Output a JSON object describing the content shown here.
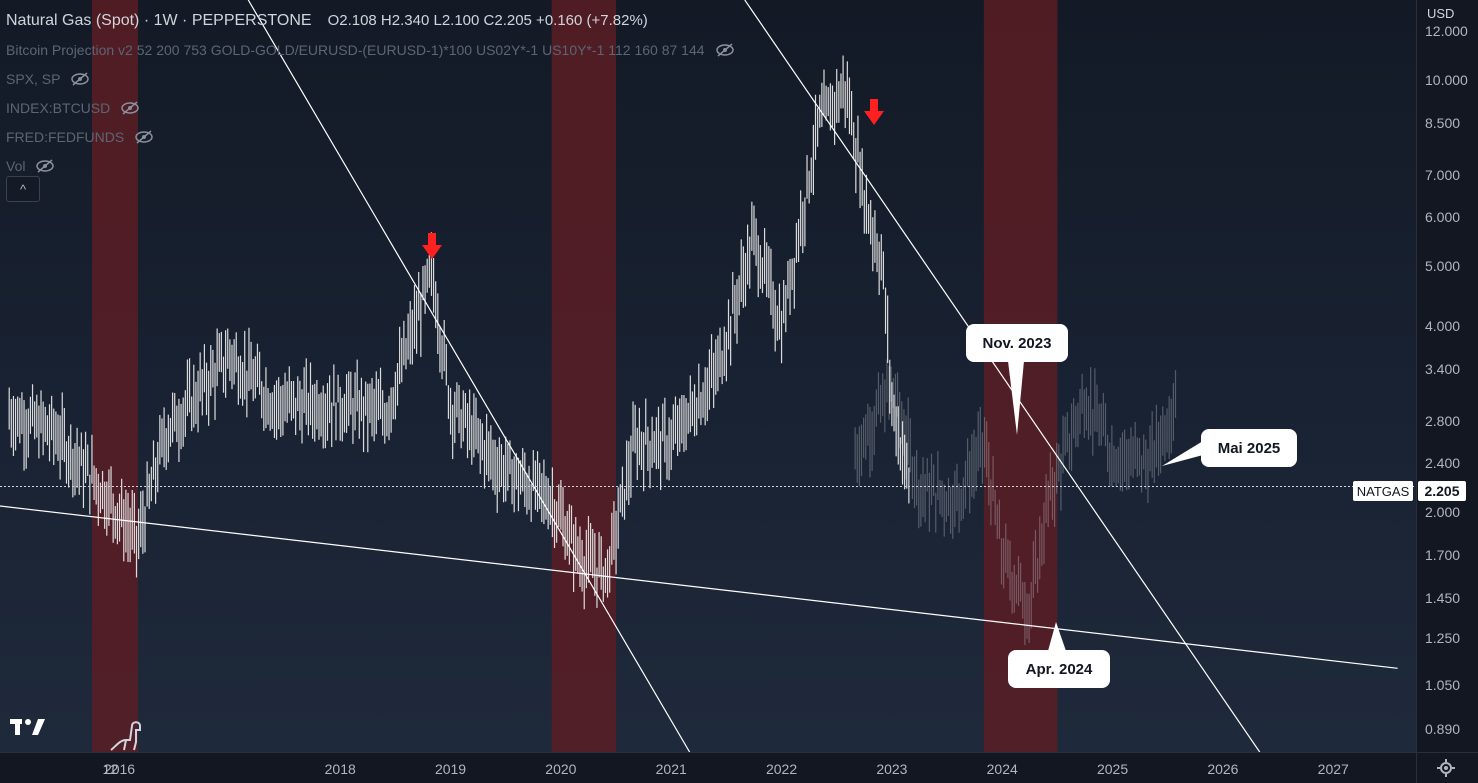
{
  "header": {
    "symbol_title": "Natural Gas (Spot) · 1W · PEPPERSTONE",
    "ohlc": "O2.108  H2.340  L2.100  C2.205  +0.160 (+7.82%)",
    "indicators": [
      {
        "label": "Bitcoin Projection v2 52 200 753 GOLD-GOLD/EURUSD-(EURUSD-1)*100 US02Y*-1 US10Y*-1 112 160 87 144",
        "icon": "eye-off-icon"
      },
      {
        "label": "SPX, SP",
        "icon": "eye-off-icon"
      },
      {
        "label": "INDEX:BTCUSD",
        "icon": "eye-off-icon"
      },
      {
        "label": "FRED:FEDFUNDS",
        "icon": "eye-off-icon"
      },
      {
        "label": "Vol",
        "icon": "eye-off-icon"
      }
    ],
    "collapse_glyph": "^"
  },
  "currency": "USD",
  "price_axis_ticks": [
    "12.000",
    "10.000",
    "8.500",
    "7.000",
    "6.000",
    "5.000",
    "4.000",
    "3.400",
    "2.800",
    "2.400",
    "2.000",
    "1.700",
    "1.450",
    "1.250",
    "1.050",
    "0.890"
  ],
  "time_axis_ticks": [
    "12",
    "2016",
    "2018",
    "2019",
    "2020",
    "2021",
    "2022",
    "2023",
    "2024",
    "2025",
    "2026",
    "2027"
  ],
  "last_price": {
    "symbol": "NATGAS",
    "value": "2.205"
  },
  "colors": {
    "band": "#5a1d24",
    "arrow": "#ff2020",
    "line": "#ffffff",
    "bars": "#e6e6e6"
  },
  "annotations": {
    "callouts": [
      "Nov. 2023",
      "Apr. 2024",
      "Mai 2025"
    ]
  },
  "chart_data": {
    "type": "ohlc-bar",
    "scale": "log",
    "ylim": [
      0.82,
      13.5
    ],
    "xlim": [
      "2014-12",
      "2027-10"
    ],
    "price_series": {
      "x": [
        "2015-01",
        "2015-06",
        "2015-12",
        "2016-03",
        "2016-06",
        "2017-01",
        "2017-06",
        "2018-01",
        "2018-06",
        "2018-11",
        "2019-01",
        "2019-06",
        "2019-12",
        "2020-03",
        "2020-06",
        "2020-09",
        "2021-01",
        "2021-06",
        "2021-10",
        "2022-01",
        "2022-05",
        "2022-08",
        "2022-10",
        "2022-12",
        "2023-01",
        "2023-03"
      ],
      "y": [
        2.9,
        2.7,
        2.1,
        1.8,
        2.7,
        3.6,
        3.0,
        3.0,
        2.9,
        4.9,
        3.0,
        2.4,
        2.1,
        1.7,
        1.6,
        2.6,
        2.6,
        3.4,
        5.6,
        4.0,
        8.5,
        9.8,
        6.5,
        5.0,
        3.0,
        2.2
      ]
    },
    "projection_series": {
      "x": [
        "2022-09",
        "2023-01",
        "2023-04",
        "2023-08",
        "2023-11",
        "2024-01",
        "2024-04",
        "2024-06",
        "2024-10",
        "2025-01",
        "2025-05",
        "2025-08"
      ],
      "y": [
        2.5,
        3.2,
        2.2,
        2.1,
        2.6,
        1.7,
        1.4,
        2.1,
        3.1,
        2.5,
        2.4,
        3.1
      ]
    },
    "highlight_bands": [
      [
        "2015-10",
        "2016-03"
      ],
      [
        "2019-12",
        "2020-07"
      ],
      [
        "2023-11",
        "2024-07"
      ]
    ],
    "down_arrows": [
      {
        "x": "2018-11",
        "y": 5.4
      },
      {
        "x": "2022-11",
        "y": 8.9
      }
    ],
    "trendlines": [
      {
        "from": {
          "x": "2017-03",
          "y": 13.5
        },
        "to": {
          "x": "2021-03",
          "y": 0.82
        }
      },
      {
        "from": {
          "x": "2021-09",
          "y": 13.5
        },
        "to": {
          "x": "2026-05",
          "y": 0.82
        }
      },
      {
        "from": {
          "x": "2014-12",
          "y": 2.05
        },
        "to": {
          "x": "2027-08",
          "y": 1.12
        }
      }
    ],
    "last_price_line": 2.205
  }
}
